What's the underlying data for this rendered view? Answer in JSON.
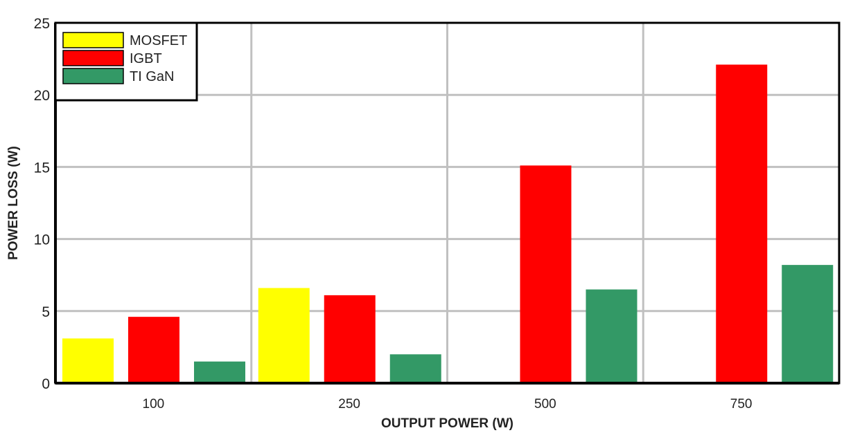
{
  "chart_data": {
    "type": "bar",
    "title": "",
    "xlabel": "OUTPUT POWER (W)",
    "ylabel": "POWER LOSS (W)",
    "categories": [
      "100",
      "250",
      "500",
      "750"
    ],
    "ylim": [
      0,
      25
    ],
    "yticks": [
      "0",
      "5",
      "10",
      "15",
      "20",
      "25"
    ],
    "grid": true,
    "legend_position": "top-left",
    "series": [
      {
        "name": "MOSFET",
        "color": "#ffff00",
        "values": [
          3.1,
          6.6,
          null,
          null
        ]
      },
      {
        "name": "IGBT",
        "color": "#ff0000",
        "values": [
          4.6,
          6.1,
          15.1,
          22.1
        ]
      },
      {
        "name": "TI GaN",
        "color": "#339966",
        "values": [
          1.5,
          2.0,
          6.5,
          8.2
        ]
      }
    ]
  }
}
